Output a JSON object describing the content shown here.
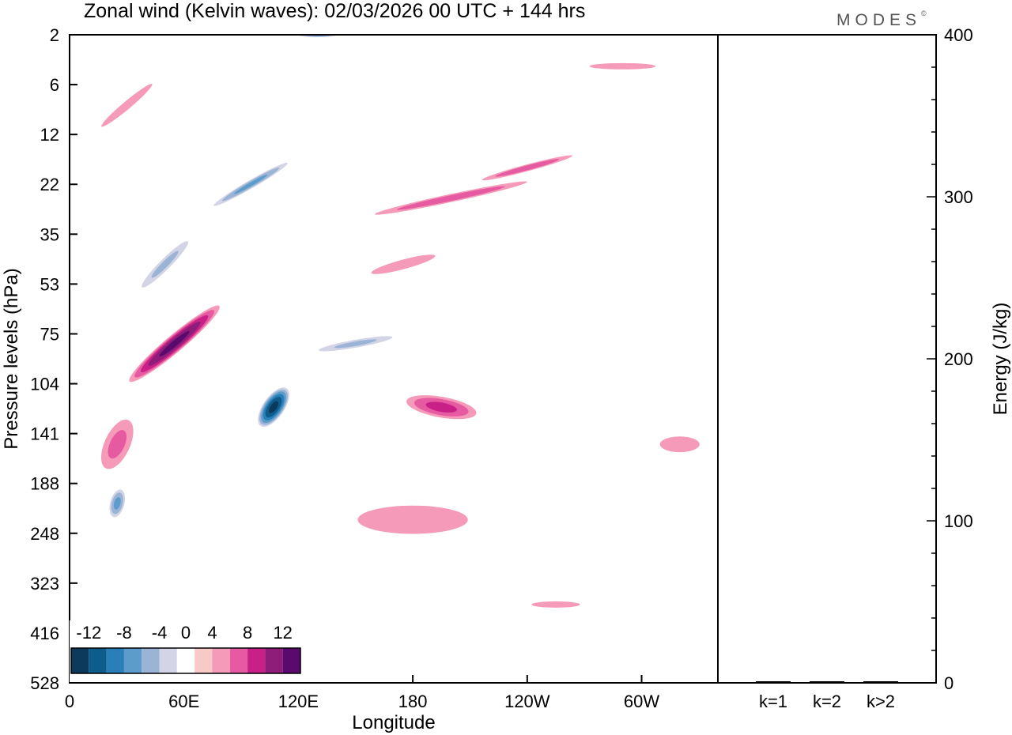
{
  "chart_data": {
    "type": "heatmap",
    "title": "Zonal wind (Kelvin waves):  02/03/2026  00 UTC  + 144 hrs",
    "logo": "MODES",
    "logo_mark": "©",
    "xlabel": "Longitude",
    "ylabel": "Pressure levels (hPa)",
    "x_ticks": [
      "0",
      "60E",
      "120E",
      "180",
      "120W",
      "60W"
    ],
    "x_tick_values": [
      0,
      60,
      120,
      180,
      240,
      300
    ],
    "x_range": [
      0,
      340
    ],
    "y_ticks": [
      "2",
      "6",
      "12",
      "22",
      "35",
      "53",
      "75",
      "104",
      "141",
      "188",
      "248",
      "323",
      "416",
      "528"
    ],
    "colorbar": {
      "labels": [
        "-12",
        "-8",
        "-4",
        "0",
        "4",
        "8",
        "12"
      ],
      "levels": [
        -14,
        -12,
        -10,
        -8,
        -6,
        -4,
        -2,
        2,
        4,
        6,
        8,
        10,
        12,
        14
      ],
      "colors": [
        "#0b3a5c",
        "#0d5c8c",
        "#2a7fb8",
        "#5b9ccb",
        "#9bb4d6",
        "#d3d5e6",
        "#ffffff",
        "#f7c9c7",
        "#f59ab8",
        "#e55aa0",
        "#c92088",
        "#8e1d7a",
        "#5a0a6e"
      ]
    },
    "contour_features": [
      {
        "sign": "negative",
        "peak": -14,
        "center_lon": 107,
        "center_hPa": 120
      },
      {
        "sign": "positive",
        "peak": 10,
        "center_lon": 55,
        "center_hPa": 80
      },
      {
        "sign": "positive",
        "peak": 6,
        "center_lon": 195,
        "center_hPa": 120
      },
      {
        "sign": "negative",
        "peak": -8,
        "center_lon": 25,
        "center_hPa": 210
      },
      {
        "sign": "negative",
        "peak": -8,
        "center_lon": 95,
        "center_hPa": 22
      },
      {
        "sign": "negative",
        "peak": -8,
        "center_lon": 130,
        "center_hPa": 2
      }
    ],
    "energy_panel": {
      "ylabel": "Energy (J/kg)",
      "y_ticks": [
        "0",
        "100",
        "200",
        "300",
        "400"
      ],
      "ylim": [
        0,
        400
      ],
      "categories": [
        "k=1",
        "k=2",
        "k>2"
      ],
      "values": [
        0.5,
        0.3,
        0.6
      ]
    }
  }
}
